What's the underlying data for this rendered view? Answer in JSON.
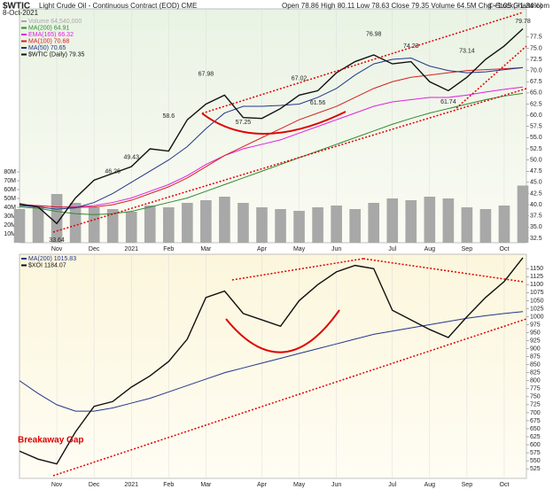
{
  "chart_data": [
    {
      "type": "stock",
      "title": "$WTIC",
      "subtitle": "Light Crude Oil - Continuous Contract (EOD) CME",
      "date": "8-Oct-2021",
      "quote": "Open 78.86 High 80.11 Low 78.63 Close 79.35 Volume 64.5M Chg +1.05 (+1.34%)",
      "credit": "© StockCharts.com",
      "categories": [
        null,
        null,
        "Nov",
        null,
        "Dec",
        null,
        "2021",
        null,
        "Feb",
        null,
        "Mar",
        null,
        null,
        "Apr",
        null,
        "May",
        null,
        "Jun",
        null,
        null,
        "Jul",
        null,
        "Aug",
        null,
        "Sep",
        null,
        "Oct",
        null
      ],
      "ylim": [
        31.5,
        83.8
      ],
      "yticks": [
        32.5,
        {
          "value": 35,
          "label": "35.0"
        },
        37.5,
        {
          "value": 40,
          "label": "40.0"
        },
        42.5,
        {
          "value": 45,
          "label": "45.0"
        },
        47.5,
        {
          "value": 50,
          "label": "50.0"
        },
        52.5,
        {
          "value": 55,
          "label": "55.0"
        },
        57.5,
        {
          "value": 60,
          "label": "60.0"
        },
        62.5,
        {
          "value": 65,
          "label": "65.0"
        },
        67.5,
        {
          "value": 70,
          "label": "70.0"
        },
        72.5,
        {
          "value": 75,
          "label": "75.0"
        },
        77.5
      ],
      "y2lim": [
        0,
        264
      ],
      "y2ticks": [
        {
          "value": 10,
          "label": "10M"
        },
        {
          "value": 20,
          "label": "20M"
        },
        {
          "value": 30,
          "label": "30M"
        },
        {
          "value": 40,
          "label": "40M"
        },
        {
          "value": 50,
          "label": "50M"
        },
        {
          "value": 60,
          "label": "60M"
        },
        {
          "value": 70,
          "label": "70M"
        },
        {
          "value": 80,
          "label": "80M"
        }
      ],
      "series": [
        {
          "name": "Volume 64,540,000",
          "color": "#a8a8a8",
          "axis": "y2",
          "kind": "bar",
          "values": [
            38,
            42,
            55,
            45,
            40,
            38,
            35,
            42,
            40,
            45,
            48,
            52,
            45,
            40,
            38,
            36,
            40,
            42,
            38,
            45,
            50,
            48,
            52,
            50,
            40,
            38,
            42,
            64.54
          ]
        },
        {
          "name": "MA(200) 64.91",
          "color": "#2e8b2e",
          "values": [
            39.5,
            39.2,
            38.5,
            38.0,
            37.8,
            38.0,
            38.5,
            39.5,
            40.5,
            41.5,
            43,
            44.5,
            46,
            47.5,
            49,
            50.5,
            52,
            53.5,
            55,
            56.5,
            58,
            59.3,
            60.5,
            61.5,
            62.5,
            63.5,
            64.3,
            64.91
          ]
        },
        {
          "name": "EMA(165) 66.32",
          "color": "#e020e0",
          "values": [
            40,
            39.8,
            39.5,
            39.5,
            39.8,
            40.5,
            41.5,
            43,
            44.5,
            46.5,
            49,
            51,
            52.5,
            53.5,
            54.5,
            56,
            57.5,
            59,
            60.5,
            62,
            63,
            63.5,
            64,
            64,
            64.5,
            65.2,
            65.8,
            66.32
          ]
        },
        {
          "name": "MA(100) 70.68",
          "color": "#d42020",
          "values": [
            40,
            39.8,
            39.5,
            39.4,
            39.5,
            40,
            41,
            42.5,
            44,
            46,
            48.5,
            51,
            53,
            55,
            57,
            59,
            60.5,
            62,
            64,
            66,
            67.5,
            68.5,
            69,
            69.5,
            70,
            70.2,
            70.4,
            70.68
          ]
        },
        {
          "name": "MA(50) 70.65",
          "color": "#23358a",
          "values": [
            39.8,
            39.5,
            39.0,
            39.3,
            40.5,
            42.5,
            45,
            47.5,
            50,
            53,
            57,
            60.5,
            62,
            62,
            62.2,
            62.5,
            64,
            66,
            69,
            71.5,
            72.5,
            72.8,
            71,
            70,
            69.5,
            69.7,
            70.2,
            70.65
          ]
        },
        {
          "name": "$WTIC (Daily) 79.35",
          "color": "#111111",
          "values": [
            40.2,
            39.5,
            35.8,
            41.5,
            45.5,
            47.0,
            48.5,
            52.5,
            52.0,
            59.0,
            62.5,
            64.5,
            59.5,
            59.3,
            61.5,
            64.5,
            65.5,
            69.5,
            72.0,
            73.5,
            71.5,
            72.0,
            67.5,
            65.5,
            68.5,
            72.5,
            75.5,
            79.35
          ]
        }
      ],
      "price_labels": [
        {
          "value": 33.64,
          "index": 2
        },
        {
          "value": 46.26,
          "index": 5
        },
        {
          "value": 49.43,
          "index": 6
        },
        {
          "value": 58.6,
          "index": 8
        },
        {
          "value": 67.98,
          "index": 10
        },
        {
          "value": 57.25,
          "index": 12
        },
        {
          "value": 67.02,
          "index": 15
        },
        {
          "value": 61.56,
          "index": 16
        },
        {
          "value": 76.98,
          "index": 19
        },
        {
          "value": 74.23,
          "index": 21
        },
        {
          "value": 61.74,
          "index": 23
        },
        {
          "value": 73.14,
          "index": 24
        },
        {
          "value": 79.78,
          "index": 27
        }
      ]
    },
    {
      "type": "stock",
      "annotation": "Breakaway Gap",
      "categories": [
        null,
        null,
        "Nov",
        null,
        "Dec",
        null,
        "2021",
        null,
        "Feb",
        null,
        "Mar",
        null,
        null,
        "Apr",
        null,
        "May",
        null,
        "Jun",
        null,
        null,
        "Jul",
        null,
        "Aug",
        null,
        "Sep",
        null,
        "Oct",
        null
      ],
      "ylim": [
        495,
        1195
      ],
      "yticks": [
        525,
        550,
        575,
        600,
        625,
        650,
        675,
        700,
        725,
        750,
        775,
        800,
        825,
        850,
        875,
        900,
        925,
        950,
        975,
        1000,
        1025,
        1050,
        1075,
        1100,
        1125,
        1150
      ],
      "series": [
        {
          "name": "MA(200) 1015.83",
          "color": "#23358a",
          "values": [
            800,
            760,
            725,
            705,
            705,
            715,
            730,
            745,
            765,
            785,
            805,
            825,
            840,
            855,
            870,
            885,
            900,
            915,
            930,
            945,
            955,
            965,
            975,
            985,
            995,
            1003,
            1010,
            1015.83
          ]
        },
        {
          "name": "$XOI 1184.07",
          "color": "#111111",
          "values": [
            580,
            555,
            540,
            640,
            720,
            735,
            780,
            815,
            860,
            930,
            1060,
            1080,
            1010,
            990,
            970,
            1050,
            1100,
            1140,
            1160,
            1150,
            1020,
            990,
            960,
            935,
            1000,
            1060,
            1110,
            1184.07
          ]
        }
      ]
    }
  ]
}
